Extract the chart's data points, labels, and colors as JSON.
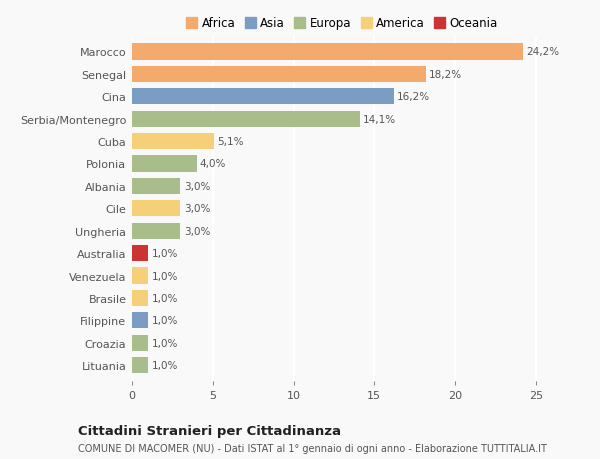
{
  "categories": [
    "Marocco",
    "Senegal",
    "Cina",
    "Serbia/Montenegro",
    "Cuba",
    "Polonia",
    "Albania",
    "Cile",
    "Ungheria",
    "Australia",
    "Venezuela",
    "Brasile",
    "Filippine",
    "Croazia",
    "Lituania"
  ],
  "values": [
    24.2,
    18.2,
    16.2,
    14.1,
    5.1,
    4.0,
    3.0,
    3.0,
    3.0,
    1.0,
    1.0,
    1.0,
    1.0,
    1.0,
    1.0
  ],
  "labels": [
    "24,2%",
    "18,2%",
    "16,2%",
    "14,1%",
    "5,1%",
    "4,0%",
    "3,0%",
    "3,0%",
    "3,0%",
    "1,0%",
    "1,0%",
    "1,0%",
    "1,0%",
    "1,0%",
    "1,0%"
  ],
  "colors": [
    "#F4A96D",
    "#F4A96D",
    "#7B9DC4",
    "#A8BD8A",
    "#F5D078",
    "#A8BD8A",
    "#A8BD8A",
    "#F5D078",
    "#A8BD8A",
    "#CC3333",
    "#F5D078",
    "#F5D078",
    "#7B9DC4",
    "#A8BD8A",
    "#A8BD8A"
  ],
  "legend_labels": [
    "Africa",
    "Asia",
    "Europa",
    "America",
    "Oceania"
  ],
  "legend_colors": [
    "#F4A96D",
    "#7B9DC4",
    "#A8BD8A",
    "#F5D078",
    "#CC3333"
  ],
  "title": "Cittadini Stranieri per Cittadinanza",
  "subtitle": "COMUNE DI MACOMER (NU) - Dati ISTAT al 1° gennaio di ogni anno - Elaborazione TUTTITALIA.IT",
  "xlim": [
    0,
    26
  ],
  "xticks": [
    0,
    5,
    10,
    15,
    20,
    25
  ],
  "bg_color": "#f9f9f9",
  "bar_height": 0.72
}
